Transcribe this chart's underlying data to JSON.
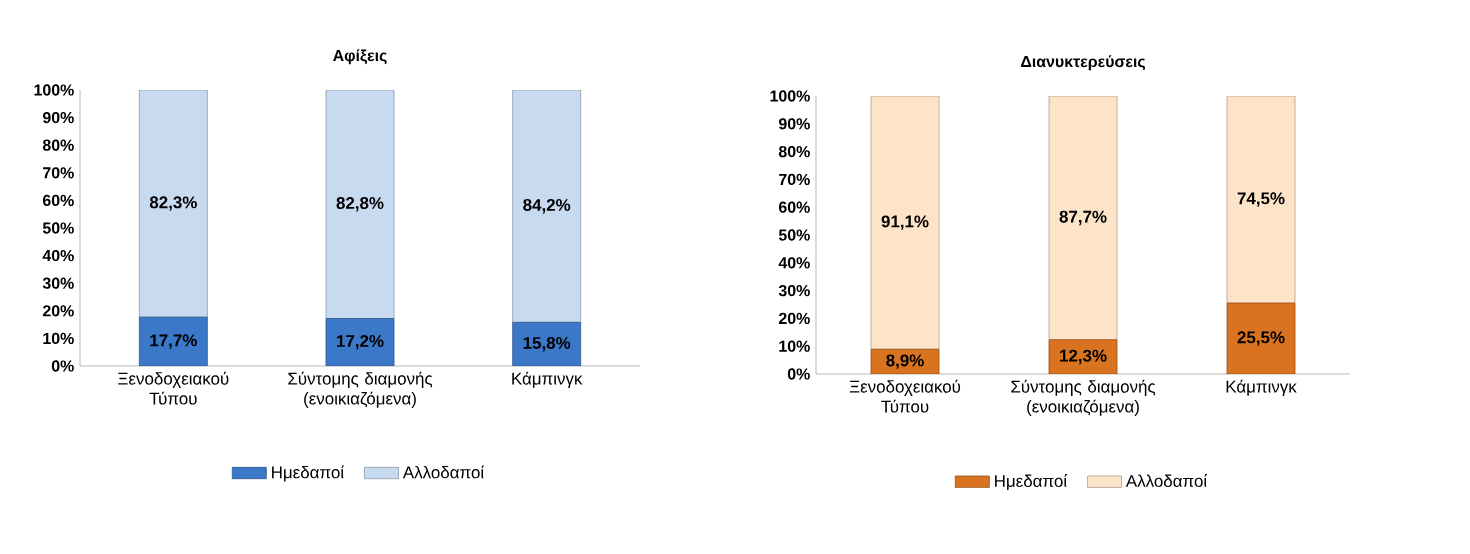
{
  "chart_data": [
    {
      "type": "bar",
      "stacked": true,
      "title": "Αφίξεις",
      "categories": [
        "Ξενοδοχειακού Τύπου",
        "Σύντομης διαμονής (ενοικιαζόμενα)",
        "Κάμπινγκ"
      ],
      "series": [
        {
          "name": "Ημεδαποί",
          "color": "#3b78c8",
          "values": [
            17.7,
            17.2,
            15.8
          ],
          "value_labels": [
            "17,7%",
            "17,2%",
            "15,8%"
          ]
        },
        {
          "name": "Αλλοδαποί",
          "color": "#c8daf0",
          "values": [
            82.3,
            82.8,
            84.2
          ],
          "value_labels": [
            "82,3%",
            "82,8%",
            "84,2%"
          ]
        }
      ],
      "ylim": [
        0,
        100
      ],
      "yticks": [
        {
          "value": 0,
          "label": "0%"
        },
        {
          "value": 10,
          "label": "10%"
        },
        {
          "value": 20,
          "label": "20%"
        },
        {
          "value": 30,
          "label": "30%"
        },
        {
          "value": 40,
          "label": "40%"
        },
        {
          "value": 50,
          "label": "50%"
        },
        {
          "value": 60,
          "label": "60%"
        },
        {
          "value": 70,
          "label": "70%"
        },
        {
          "value": 80,
          "label": "80%"
        },
        {
          "value": 90,
          "label": "90%"
        },
        {
          "value": 100,
          "label": "100%"
        }
      ],
      "legend": "bottom"
    },
    {
      "type": "bar",
      "stacked": true,
      "title": "Διανυκτερεύσεις",
      "categories": [
        "Ξενοδοχειακού Τύπου",
        "Σύντομης διαμονής (ενοικιαζόμενα)",
        "Κάμπινγκ"
      ],
      "series": [
        {
          "name": "Ημεδαποί",
          "color": "#d9731f",
          "values": [
            8.9,
            12.3,
            25.5
          ],
          "value_labels": [
            "8,9%",
            "12,3%",
            "25,5%"
          ]
        },
        {
          "name": "Αλλοδαποί",
          "color": "#fde4c8",
          "values": [
            91.1,
            87.7,
            74.5
          ],
          "value_labels": [
            "91,1%",
            "87,7%",
            "74,5%"
          ]
        }
      ],
      "ylim": [
        0,
        100
      ],
      "yticks": [
        {
          "value": 0,
          "label": "0%"
        },
        {
          "value": 10,
          "label": "10%"
        },
        {
          "value": 20,
          "label": "20%"
        },
        {
          "value": 30,
          "label": "30%"
        },
        {
          "value": 40,
          "label": "40%"
        },
        {
          "value": 50,
          "label": "50%"
        },
        {
          "value": 60,
          "label": "60%"
        },
        {
          "value": 70,
          "label": "70%"
        },
        {
          "value": 80,
          "label": "80%"
        },
        {
          "value": 90,
          "label": "90%"
        },
        {
          "value": 100,
          "label": "100%"
        }
      ],
      "legend": "bottom"
    }
  ]
}
